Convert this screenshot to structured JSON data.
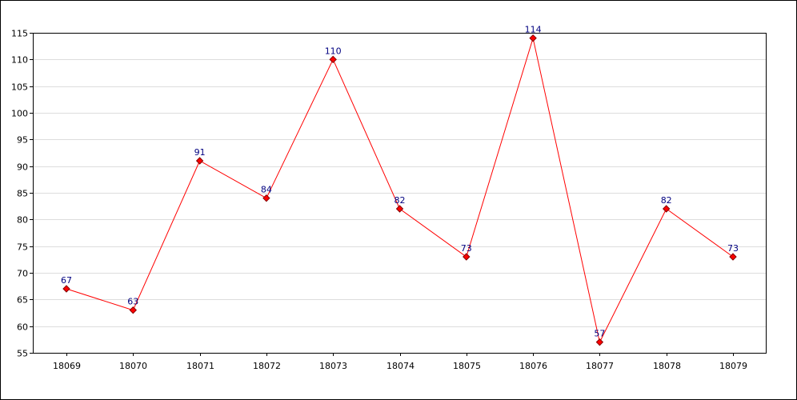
{
  "chart_data": {
    "type": "line",
    "title": "",
    "xlabel": "",
    "ylabel": "",
    "categories": [
      "18069",
      "18070",
      "18071",
      "18072",
      "18073",
      "18074",
      "18075",
      "18076",
      "18077",
      "18078",
      "18079"
    ],
    "values": [
      67,
      63,
      91,
      84,
      110,
      82,
      73,
      114,
      57,
      82,
      73
    ],
    "ylim": [
      55,
      115
    ],
    "yticks": [
      55,
      60,
      65,
      70,
      75,
      80,
      85,
      90,
      95,
      100,
      105,
      110,
      115
    ],
    "grid": "horizontal",
    "legend": "none",
    "data_labels": true,
    "colors": {
      "line": "#ff0000",
      "marker_fill": "#ff0000",
      "marker_stroke": "#800000",
      "data_label": "#000080",
      "grid": "#dddddd",
      "axis": "#000000"
    }
  }
}
